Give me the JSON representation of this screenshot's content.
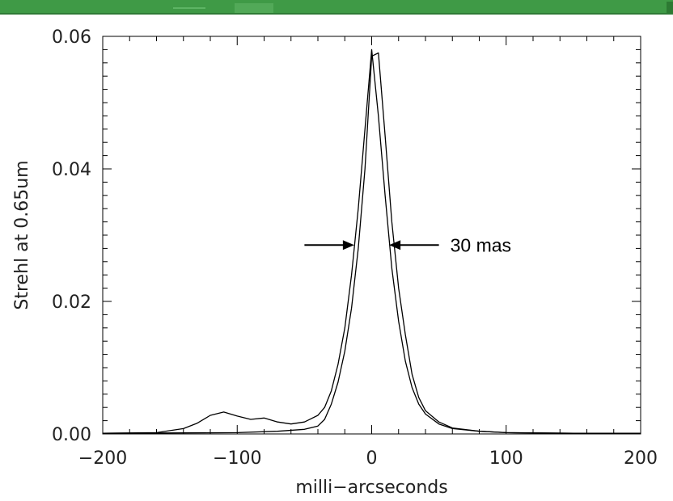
{
  "colors": {
    "banner": "#3f9a46",
    "line": "#000000",
    "background": "#ffffff"
  },
  "chart_data": {
    "type": "line",
    "title": "",
    "xlabel": "milli−arcseconds",
    "ylabel": "Strehl at 0.65um",
    "xlim": [
      -200,
      200
    ],
    "ylim": [
      0,
      0.06
    ],
    "x_ticks": [
      -200,
      -100,
      0,
      100,
      200
    ],
    "x_tick_labels": [
      "−200",
      "−100",
      "0",
      "100",
      "200"
    ],
    "y_ticks": [
      0,
      0.02,
      0.04,
      0.06
    ],
    "y_tick_labels": [
      "0.00",
      "0.02",
      "0.04",
      "0.06"
    ],
    "grid": false,
    "series": [
      {
        "x": [
          -200,
          -160,
          -140,
          -130,
          -120,
          -110,
          -100,
          -90,
          -80,
          -70,
          -60,
          -50,
          -40,
          -35,
          -30,
          -25,
          -20,
          -15,
          -10,
          -5,
          0,
          5,
          10,
          15,
          20,
          25,
          30,
          35,
          40,
          50,
          60,
          80,
          100,
          150,
          200
        ],
        "y": [
          0.0001,
          0.0002,
          0.0008,
          0.0016,
          0.0028,
          0.0033,
          0.0027,
          0.0022,
          0.0024,
          0.0018,
          0.0015,
          0.0018,
          0.0028,
          0.004,
          0.0065,
          0.0105,
          0.016,
          0.024,
          0.034,
          0.046,
          0.058,
          0.048,
          0.036,
          0.025,
          0.017,
          0.011,
          0.007,
          0.0045,
          0.003,
          0.0015,
          0.0008,
          0.0004,
          0.0002,
          0.0001,
          0.0001
        ]
      },
      {
        "x": [
          -200,
          -100,
          -70,
          -50,
          -40,
          -35,
          -30,
          -25,
          -20,
          -15,
          -10,
          -5,
          0,
          5,
          10,
          15,
          20,
          25,
          30,
          35,
          40,
          50,
          60,
          80,
          100,
          150,
          200
        ],
        "y": [
          0.0001,
          0.0002,
          0.0004,
          0.0007,
          0.0012,
          0.0022,
          0.0045,
          0.0078,
          0.0125,
          0.019,
          0.028,
          0.04,
          0.057,
          0.0575,
          0.045,
          0.032,
          0.022,
          0.015,
          0.009,
          0.0055,
          0.0035,
          0.0018,
          0.0009,
          0.0004,
          0.0002,
          0.0001,
          0.0001
        ]
      }
    ],
    "annotations": [
      {
        "text": "30 mas",
        "type": "fwhm-arrows",
        "x_left": -13,
        "x_right": 13,
        "y": 0.0285
      }
    ]
  }
}
